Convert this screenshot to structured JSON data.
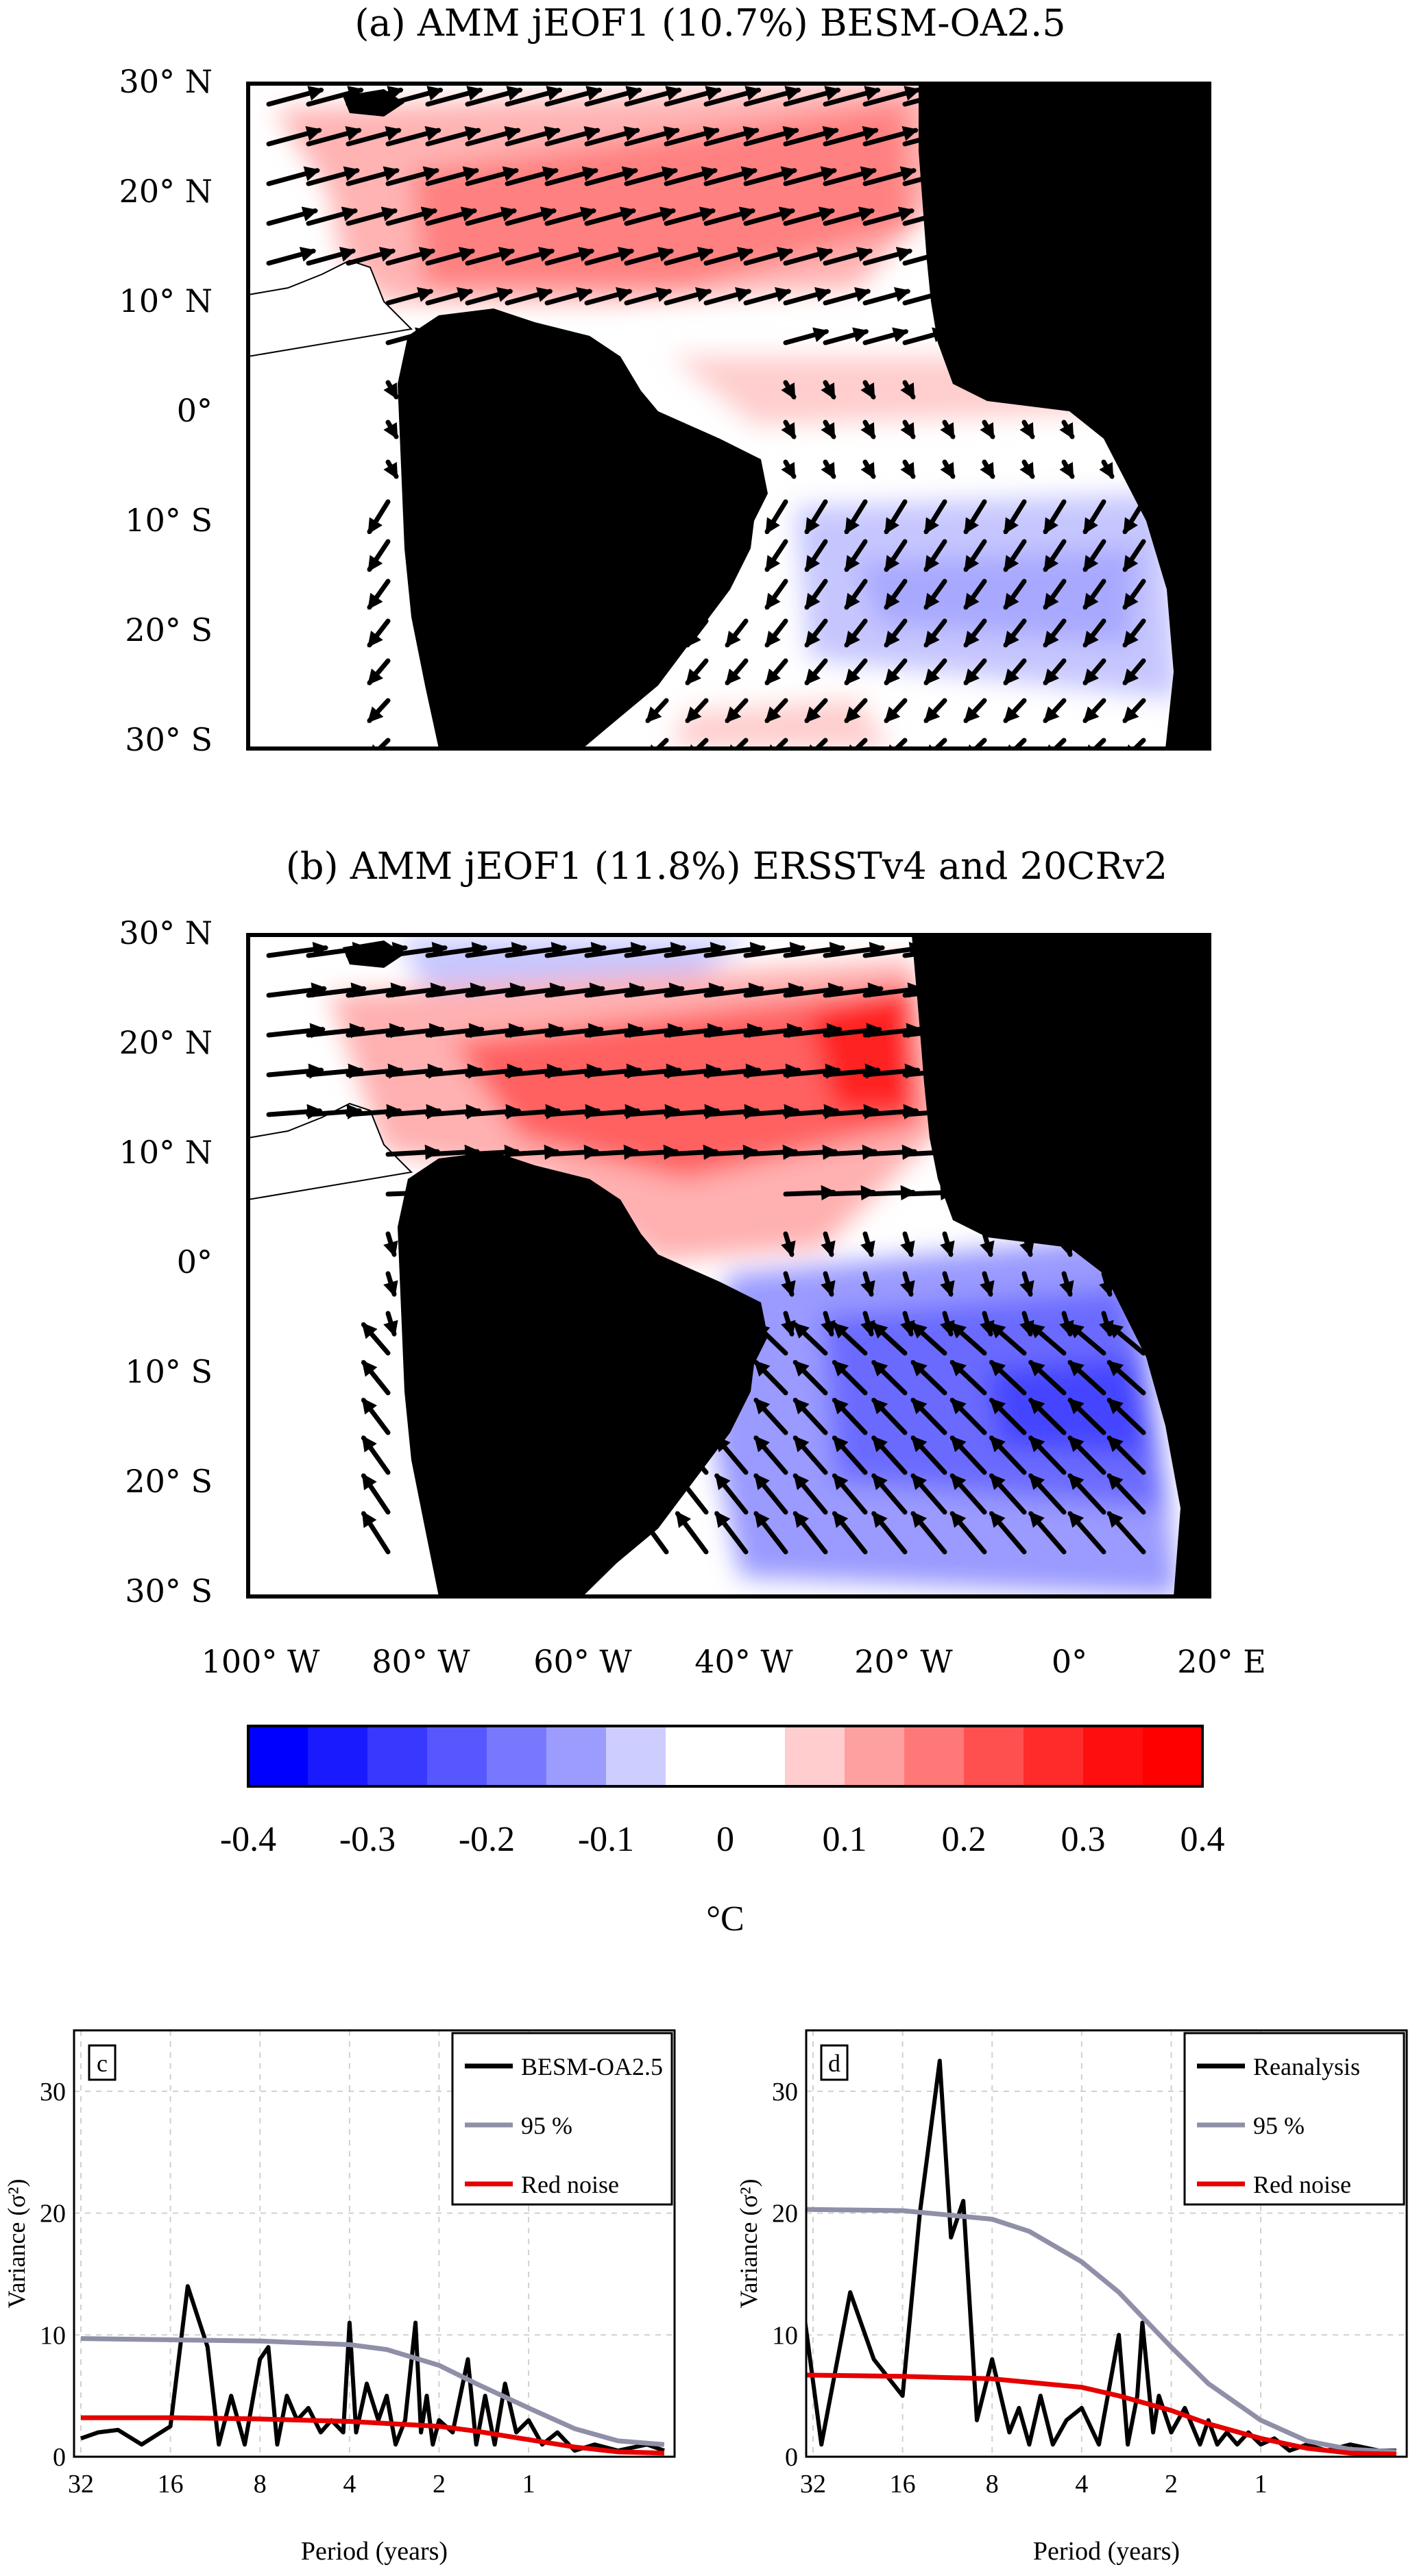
{
  "panels": {
    "a": {
      "title": "(a)  AMM  jEOF1  (10.7%)  BESM-OA2.5",
      "lat_labels": [
        "30° N",
        "20° N",
        "10° N",
        "0°",
        "10° S",
        "20° S",
        "30° S"
      ]
    },
    "b": {
      "title": "(b)  AMM  jEOF1  (11.8%)  ERSSTv4  and  20CRv2",
      "lat_labels": [
        "30° N",
        "20° N",
        "10° N",
        "0°",
        "10° S",
        "20° S",
        "30° S"
      ],
      "lon_labels": [
        "100° W",
        "80° W",
        "60° W",
        "40° W",
        "20° W",
        "0°",
        "20° E"
      ]
    }
  },
  "colorbar": {
    "ticks": [
      "-0.4",
      "-0.3",
      "-0.2",
      "-0.1",
      "0",
      "0.1",
      "0.2",
      "0.3",
      "0.4"
    ],
    "unit": "°C",
    "colors": [
      "#0000ff",
      "#1a1aff",
      "#3838ff",
      "#5757ff",
      "#7878ff",
      "#9c9cff",
      "#cdcdff",
      "#ffffff",
      "#ffffff",
      "#ffcdcd",
      "#ffa0a0",
      "#ff7878",
      "#ff5050",
      "#ff2a2a",
      "#ff0e0e",
      "#ff0000"
    ]
  },
  "chart_data": [
    {
      "type": "line",
      "panel_label": "c",
      "xlabel": "Period (years)",
      "ylabel": "Variance (σ²)",
      "ylim": [
        0,
        35
      ],
      "x_ticks": [
        "32",
        "16",
        "8",
        "4",
        "2",
        "1"
      ],
      "y_ticks": [
        "0",
        "10",
        "20",
        "30"
      ],
      "grid": true,
      "legend": "top-right",
      "series": [
        {
          "name": "BESM-OA2.5",
          "color": "#000000",
          "x": [
            32,
            28,
            24,
            20,
            16,
            14,
            12,
            11,
            10,
            9,
            8,
            7.5,
            7,
            6.5,
            6,
            5.5,
            5,
            4.6,
            4.2,
            4,
            3.8,
            3.5,
            3.2,
            3,
            2.8,
            2.6,
            2.4,
            2.3,
            2.2,
            2.1,
            2,
            1.8,
            1.6,
            1.5,
            1.4,
            1.3,
            1.2,
            1.1,
            1,
            0.9,
            0.8,
            0.7,
            0.6,
            0.5,
            0.4,
            0.35
          ],
          "y": [
            1.5,
            2,
            2.2,
            1,
            2.5,
            14,
            9,
            1,
            5,
            1,
            8,
            9,
            1,
            5,
            3,
            4,
            2,
            3,
            2,
            11,
            2,
            6,
            3,
            5,
            1,
            3,
            11,
            2,
            5,
            1,
            3,
            2,
            8,
            1,
            5,
            1,
            6,
            2,
            3,
            1,
            2,
            0.5,
            1,
            0.5,
            1,
            0.5
          ]
        },
        {
          "name": "95 %",
          "color": "#8f8fa8",
          "x": [
            32,
            16,
            8,
            4,
            3,
            2,
            1.5,
            1,
            0.7,
            0.5,
            0.35
          ],
          "y": [
            9.7,
            9.6,
            9.5,
            9.2,
            8.8,
            7.5,
            6,
            4,
            2.3,
            1.3,
            1.0
          ]
        },
        {
          "name": "Red noise",
          "color": "#e60000",
          "x": [
            32,
            16,
            8,
            4,
            2,
            1.5,
            1,
            0.7,
            0.5,
            0.35
          ],
          "y": [
            3.2,
            3.2,
            3.1,
            2.9,
            2.5,
            2.1,
            1.4,
            0.8,
            0.4,
            0.3
          ]
        }
      ]
    },
    {
      "type": "line",
      "panel_label": "d",
      "xlabel": "Period (years)",
      "ylabel": "Variance (σ²)",
      "ylim": [
        0,
        35
      ],
      "x_ticks": [
        "32",
        "16",
        "8",
        "4",
        "2",
        "1"
      ],
      "y_ticks": [
        "0",
        "10",
        "20",
        "30"
      ],
      "grid": true,
      "legend": "top-right",
      "series": [
        {
          "name": "Reanalysis",
          "color": "#000000",
          "x": [
            34,
            30,
            24,
            20,
            16,
            14,
            12,
            11,
            10,
            9,
            8,
            7,
            6.5,
            6,
            5.5,
            5,
            4.5,
            4,
            3.5,
            3,
            2.8,
            2.6,
            2.5,
            2.3,
            2.2,
            2,
            1.8,
            1.6,
            1.5,
            1.4,
            1.3,
            1.2,
            1.1,
            1,
            0.9,
            0.8,
            0.7,
            0.6,
            0.5,
            0.4,
            0.35
          ],
          "y": [
            11,
            1,
            13.5,
            8,
            5,
            20,
            32.5,
            18,
            21,
            3,
            8,
            2,
            4,
            1,
            5,
            1,
            3,
            4,
            1,
            10,
            1,
            5,
            11,
            2,
            5,
            2,
            4,
            1,
            3,
            1,
            2,
            1,
            2,
            1,
            1.5,
            0.5,
            1,
            0.5,
            1,
            0.5,
            0.5
          ]
        },
        {
          "name": "95 %",
          "color": "#8f8fa8",
          "x": [
            34,
            16,
            8,
            6,
            4,
            3,
            2,
            1.5,
            1,
            0.7,
            0.5,
            0.35
          ],
          "y": [
            20.3,
            20.2,
            19.5,
            18.5,
            16,
            13.5,
            9,
            6,
            3,
            1.3,
            0.6,
            0.4
          ]
        },
        {
          "name": "Red noise",
          "color": "#e60000",
          "x": [
            34,
            16,
            8,
            4,
            3,
            2,
            1.5,
            1,
            0.7,
            0.5,
            0.35
          ],
          "y": [
            6.7,
            6.6,
            6.4,
            5.7,
            5.0,
            3.8,
            2.7,
            1.5,
            0.7,
            0.3,
            0.2
          ]
        }
      ]
    }
  ]
}
